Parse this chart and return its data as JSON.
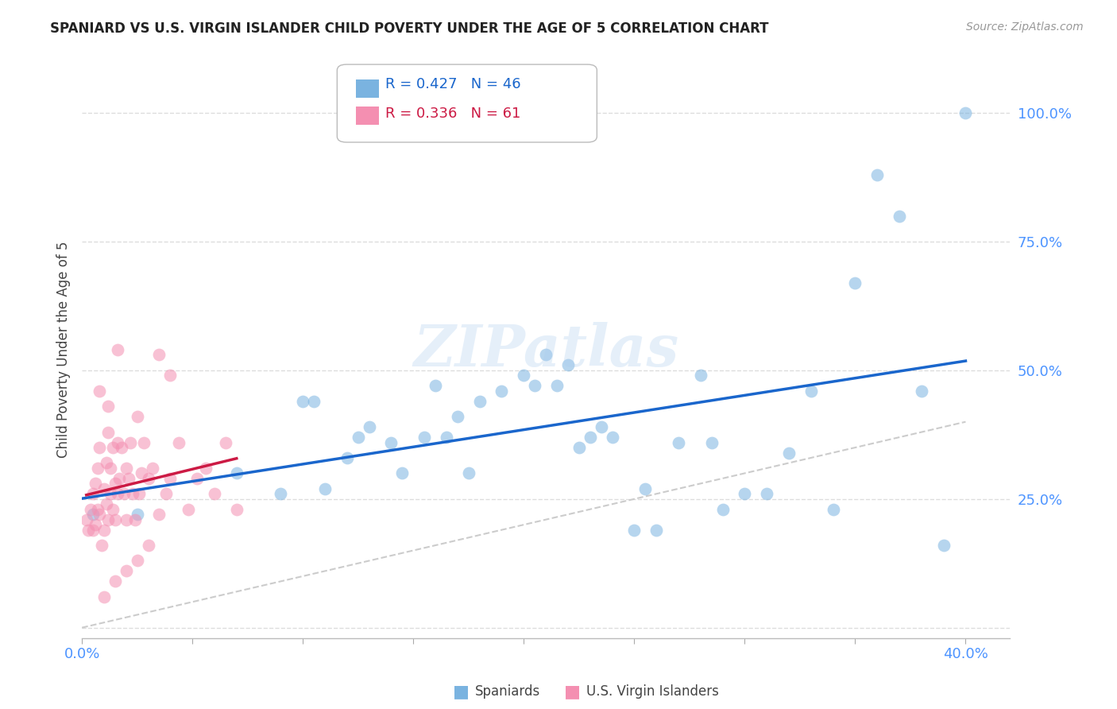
{
  "title": "SPANIARD VS U.S. VIRGIN ISLANDER CHILD POVERTY UNDER THE AGE OF 5 CORRELATION CHART",
  "source": "Source: ZipAtlas.com",
  "tick_color": "#4d94ff",
  "ylabel": "Child Poverty Under the Age of 5",
  "xlim": [
    0.0,
    0.42
  ],
  "ylim": [
    -0.02,
    1.1
  ],
  "xticks": [
    0.0,
    0.05,
    0.1,
    0.15,
    0.2,
    0.25,
    0.3,
    0.35,
    0.4
  ],
  "yticks": [
    0.0,
    0.25,
    0.5,
    0.75,
    1.0
  ],
  "ytick_labels": [
    "",
    "25.0%",
    "50.0%",
    "75.0%",
    "100.0%"
  ],
  "xtick_labels": [
    "0.0%",
    "",
    "",
    "",
    "",
    "",
    "",
    "",
    "40.0%"
  ],
  "watermark": "ZIPatlas",
  "legend_blue_R": "R = 0.427",
  "legend_blue_N": "N = 46",
  "legend_pink_R": "R = 0.336",
  "legend_pink_N": "N = 61",
  "spaniards_color": "#7ab3e0",
  "us_virgin_color": "#f48fb1",
  "trendline_blue_color": "#1a66cc",
  "trendline_pink_color": "#cc1a44",
  "diagonal_color": "#cccccc",
  "spaniards_x": [
    0.005,
    0.025,
    0.07,
    0.09,
    0.1,
    0.105,
    0.11,
    0.12,
    0.125,
    0.13,
    0.14,
    0.145,
    0.155,
    0.16,
    0.165,
    0.17,
    0.175,
    0.18,
    0.19,
    0.2,
    0.205,
    0.21,
    0.215,
    0.22,
    0.225,
    0.23,
    0.235,
    0.24,
    0.25,
    0.255,
    0.26,
    0.27,
    0.28,
    0.285,
    0.29,
    0.3,
    0.31,
    0.32,
    0.33,
    0.34,
    0.35,
    0.36,
    0.37,
    0.38,
    0.39,
    0.4
  ],
  "spaniards_y": [
    0.22,
    0.22,
    0.3,
    0.26,
    0.44,
    0.44,
    0.27,
    0.33,
    0.37,
    0.39,
    0.36,
    0.3,
    0.37,
    0.47,
    0.37,
    0.41,
    0.3,
    0.44,
    0.46,
    0.49,
    0.47,
    0.53,
    0.47,
    0.51,
    0.35,
    0.37,
    0.39,
    0.37,
    0.19,
    0.27,
    0.19,
    0.36,
    0.49,
    0.36,
    0.23,
    0.26,
    0.26,
    0.34,
    0.46,
    0.23,
    0.67,
    0.88,
    0.8,
    0.46,
    0.16,
    1.0
  ],
  "us_virgin_x": [
    0.002,
    0.003,
    0.004,
    0.005,
    0.005,
    0.006,
    0.006,
    0.007,
    0.007,
    0.008,
    0.008,
    0.009,
    0.01,
    0.01,
    0.011,
    0.011,
    0.012,
    0.012,
    0.013,
    0.013,
    0.014,
    0.014,
    0.015,
    0.015,
    0.016,
    0.016,
    0.017,
    0.018,
    0.019,
    0.02,
    0.02,
    0.021,
    0.022,
    0.023,
    0.024,
    0.025,
    0.026,
    0.027,
    0.028,
    0.03,
    0.032,
    0.035,
    0.038,
    0.04,
    0.044,
    0.048,
    0.052,
    0.056,
    0.06,
    0.065,
    0.07,
    0.01,
    0.015,
    0.02,
    0.025,
    0.03,
    0.035,
    0.04,
    0.008,
    0.012,
    0.016
  ],
  "us_virgin_y": [
    0.21,
    0.19,
    0.23,
    0.26,
    0.19,
    0.28,
    0.2,
    0.31,
    0.23,
    0.22,
    0.35,
    0.16,
    0.27,
    0.19,
    0.32,
    0.24,
    0.21,
    0.38,
    0.31,
    0.26,
    0.23,
    0.35,
    0.28,
    0.21,
    0.36,
    0.26,
    0.29,
    0.35,
    0.26,
    0.21,
    0.31,
    0.29,
    0.36,
    0.26,
    0.21,
    0.41,
    0.26,
    0.3,
    0.36,
    0.29,
    0.31,
    0.22,
    0.26,
    0.29,
    0.36,
    0.23,
    0.29,
    0.31,
    0.26,
    0.36,
    0.23,
    0.06,
    0.09,
    0.11,
    0.13,
    0.16,
    0.53,
    0.49,
    0.46,
    0.43,
    0.54
  ],
  "background_color": "#ffffff",
  "grid_color": "#dddddd"
}
